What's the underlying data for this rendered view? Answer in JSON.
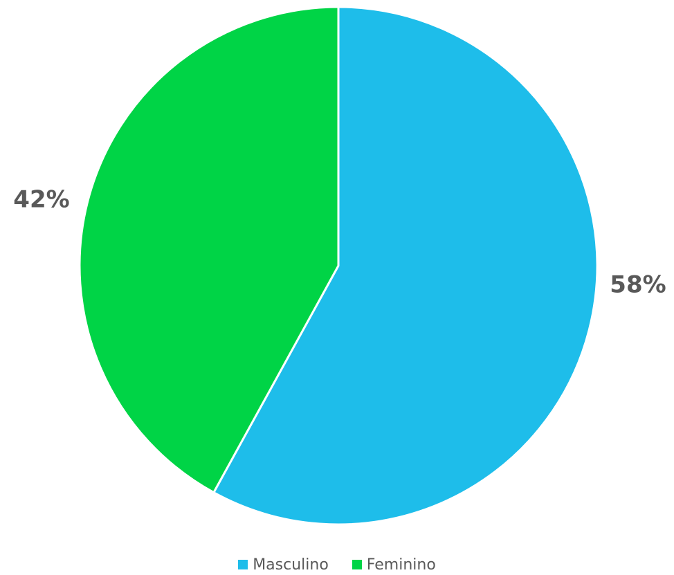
{
  "chart_data": {
    "type": "pie",
    "categories": [
      "Masculino",
      "Feminino"
    ],
    "values": [
      58,
      42
    ],
    "labels": [
      "58%",
      "42%"
    ],
    "colors": [
      "#1EBDEA",
      "#00D446"
    ],
    "start_angle": "12 o'clock",
    "direction": "clockwise",
    "legend_placement": "bottom",
    "label_color": "#595959",
    "border_color": "#ffffff"
  }
}
